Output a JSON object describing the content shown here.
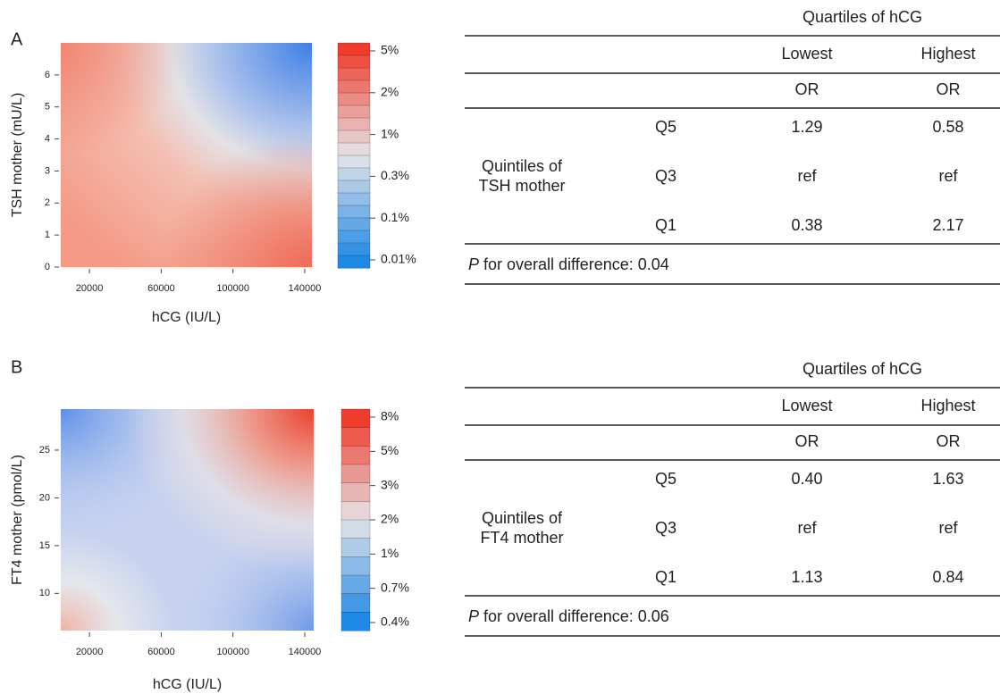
{
  "chart_data": [
    {
      "type": "contour",
      "panel": "A",
      "xlabel": "hCG (IU/L)",
      "ylabel": "TSH mother (mU/L)",
      "xlim": [
        4000,
        144000
      ],
      "xticks": [
        20000,
        60000,
        100000,
        140000
      ],
      "ylim": [
        0,
        7
      ],
      "yticks": [
        0,
        1,
        2,
        3,
        4,
        5,
        6
      ],
      "colorbar": [
        {
          "value": 5,
          "label": "5%"
        },
        {
          "value": 2,
          "label": "2%"
        },
        {
          "value": 1,
          "label": "1%"
        },
        {
          "value": 0.3,
          "label": "0.3%"
        },
        {
          "value": 0.1,
          "label": "0.1%"
        },
        {
          "value": 0.01,
          "label": "0.01%"
        }
      ]
    },
    {
      "type": "contour",
      "panel": "B",
      "xlabel": "hCG (IU/L)",
      "ylabel": "FT4 mother (pmol/L)",
      "xlim": [
        4000,
        145000
      ],
      "xticks": [
        20000,
        60000,
        100000,
        140000
      ],
      "ylim": [
        6.1,
        29.3
      ],
      "yticks": [
        10,
        15,
        20,
        25
      ],
      "colorbar": [
        {
          "value": 8,
          "label": "8%"
        },
        {
          "value": 5,
          "label": "5%"
        },
        {
          "value": 3,
          "label": "3%"
        },
        {
          "value": 2,
          "label": "2%"
        },
        {
          "value": 1,
          "label": "1%"
        },
        {
          "value": 0.7,
          "label": "0.7%"
        },
        {
          "value": 0.4,
          "label": "0.4%"
        }
      ]
    }
  ],
  "tables": [
    {
      "header": "Quartiles of hCG",
      "columns": [
        "Lowest",
        "Highest"
      ],
      "subheader": [
        "OR",
        "OR"
      ],
      "group_label": [
        "Quintiles of",
        "TSH mother"
      ],
      "rows": [
        {
          "label": "Q5",
          "cells": [
            "1.29",
            "0.58"
          ]
        },
        {
          "label": "Q3",
          "cells": [
            "ref",
            "ref"
          ]
        },
        {
          "label": "Q1",
          "cells": [
            "0.38",
            "2.17"
          ]
        }
      ],
      "footer": {
        "p": "P",
        "text": "for overall difference: 0.04"
      }
    },
    {
      "header": "Quartiles of hCG",
      "columns": [
        "Lowest",
        "Highest"
      ],
      "subheader": [
        "OR",
        "OR"
      ],
      "group_label": [
        "Quintiles of",
        "FT4 mother"
      ],
      "rows": [
        {
          "label": "Q5",
          "cells": [
            "0.40",
            "1.63"
          ]
        },
        {
          "label": "Q3",
          "cells": [
            "ref",
            "ref"
          ]
        },
        {
          "label": "Q1",
          "cells": [
            "1.13",
            "0.84"
          ]
        }
      ],
      "footer": {
        "p": "P",
        "text": "for overall difference: 0.06"
      }
    }
  ]
}
